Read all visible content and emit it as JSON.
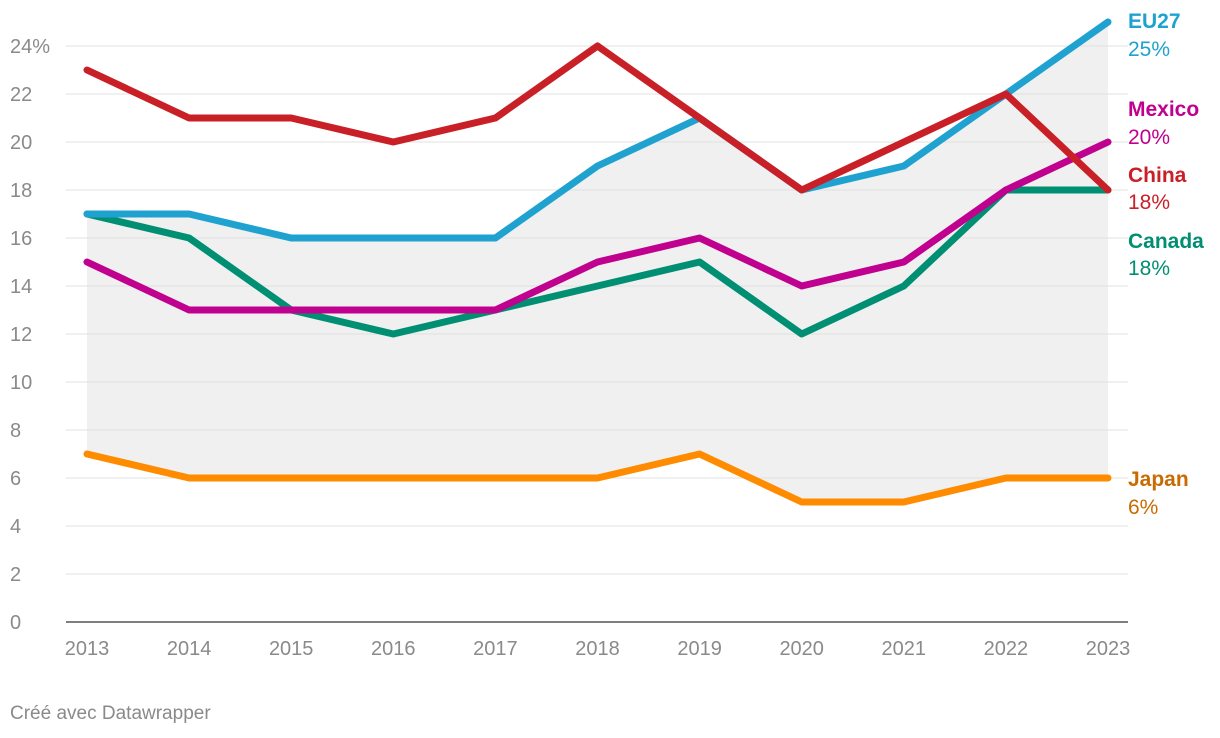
{
  "chart_data": {
    "type": "line",
    "title": "",
    "xlabel": "",
    "ylabel": "",
    "x": [
      2013,
      2014,
      2015,
      2016,
      2017,
      2018,
      2019,
      2020,
      2021,
      2022,
      2023
    ],
    "ylim": [
      0,
      24
    ],
    "yticks": [
      0,
      2,
      4,
      6,
      8,
      10,
      12,
      14,
      16,
      18,
      20,
      22,
      24
    ],
    "ytick_labels": [
      "0",
      "2",
      "4",
      "6",
      "8",
      "10",
      "12",
      "14",
      "16",
      "18",
      "20",
      "22",
      "24%"
    ],
    "grid": true,
    "shaded_range": "area between Japan and EU27 series",
    "series": [
      {
        "name": "EU27",
        "end_label": "25%",
        "color": "#1fa2d0",
        "values": [
          17,
          17,
          16,
          16,
          16,
          19,
          21,
          18,
          19,
          22,
          25
        ]
      },
      {
        "name": "China",
        "end_label": "18%",
        "color": "#c91f26",
        "values": [
          23,
          21,
          21,
          20,
          21,
          24,
          21,
          18,
          20,
          22,
          18
        ]
      },
      {
        "name": "Mexico",
        "end_label": "20%",
        "color": "#c0008e",
        "values": [
          15,
          13,
          13,
          13,
          13,
          15,
          16,
          14,
          15,
          18,
          20
        ]
      },
      {
        "name": "Canada",
        "end_label": "18%",
        "color": "#008f72",
        "values": [
          17,
          16,
          13,
          12,
          13,
          14,
          15,
          12,
          14,
          18,
          18
        ]
      },
      {
        "name": "Japan",
        "end_label": "6%",
        "color": "#ff8c00",
        "label_color": "#c96b00",
        "values": [
          7,
          6,
          6,
          6,
          6,
          6,
          7,
          5,
          5,
          6,
          6
        ]
      }
    ]
  },
  "footer": {
    "credit": "Créé avec Datawrapper"
  },
  "colors": {
    "grid": "#e1e1e1",
    "axis_text": "#8a8a8a",
    "band": "#f0f0f0"
  }
}
